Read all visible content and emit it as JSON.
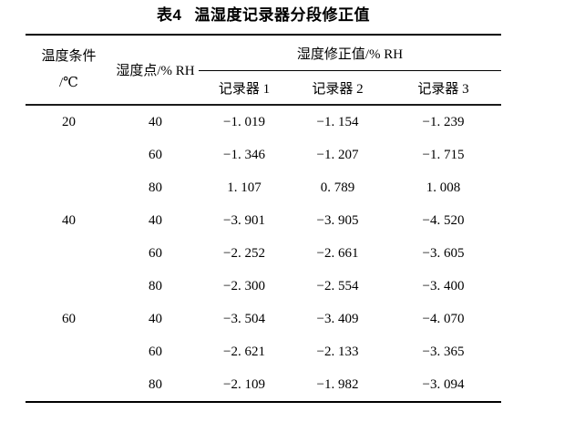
{
  "title": {
    "label": "表4",
    "text": "温湿度记录器分段修正值"
  },
  "table": {
    "header": {
      "temp_condition_line1": "温度条件",
      "temp_condition_line2": "/℃",
      "humidity_point": "湿度点/% RH",
      "correction_group": "湿度修正值/% RH",
      "recorder1": "记录器 1",
      "recorder2": "记录器 2",
      "recorder3": "记录器 3"
    },
    "rows": [
      [
        "20",
        "40",
        "−1. 019",
        "−1. 154",
        "−1. 239"
      ],
      [
        "",
        "60",
        "−1. 346",
        "−1. 207",
        "−1. 715"
      ],
      [
        "",
        "80",
        "1. 107",
        "0. 789",
        "1. 008"
      ],
      [
        "40",
        "40",
        "−3. 901",
        "−3. 905",
        "−4. 520"
      ],
      [
        "",
        "60",
        "−2. 252",
        "−2. 661",
        "−3. 605"
      ],
      [
        "",
        "80",
        "−2. 300",
        "−2. 554",
        "−3. 400"
      ],
      [
        "60",
        "40",
        "−3. 504",
        "−3. 409",
        "−4. 070"
      ],
      [
        "",
        "60",
        "−2. 621",
        "−2. 133",
        "−3. 365"
      ],
      [
        "",
        "80",
        "−2. 109",
        "−1. 982",
        "−3. 094"
      ]
    ]
  },
  "colors": {
    "rule": "#000000",
    "text": "#000000",
    "background": "#ffffff"
  }
}
